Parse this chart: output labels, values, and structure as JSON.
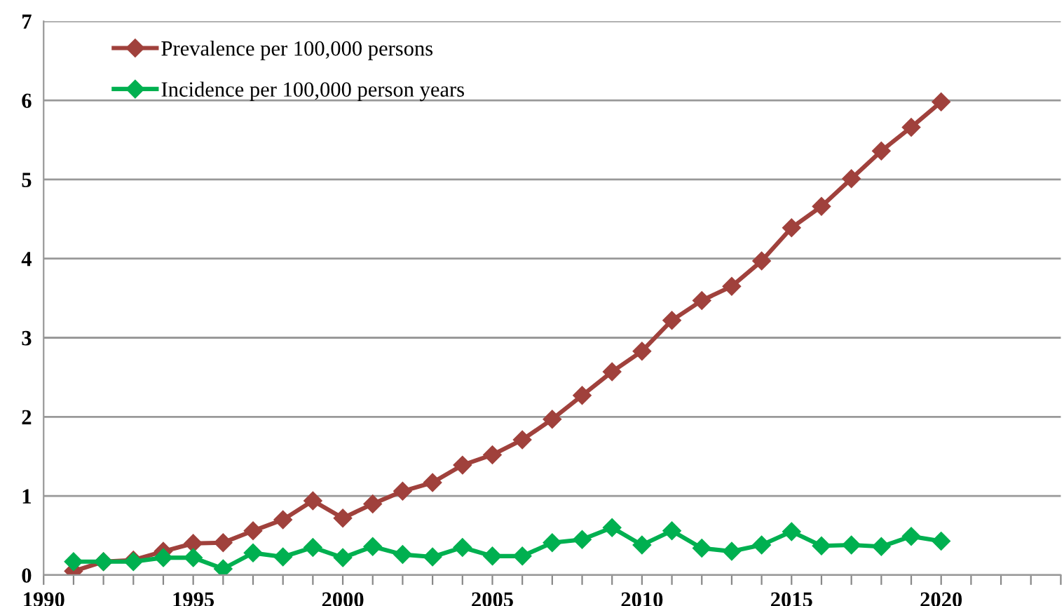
{
  "chart_data": {
    "type": "line",
    "x": [
      1991,
      1992,
      1993,
      1994,
      1995,
      1996,
      1997,
      1998,
      1999,
      2000,
      2001,
      2002,
      2003,
      2004,
      2005,
      2006,
      2007,
      2008,
      2009,
      2010,
      2011,
      2012,
      2013,
      2014,
      2015,
      2016,
      2017,
      2018,
      2019,
      2020
    ],
    "series": [
      {
        "name": "Prevalence per 100,000 persons",
        "color": "#a0413c",
        "values": [
          0.05,
          0.17,
          0.19,
          0.3,
          0.4,
          0.41,
          0.56,
          0.7,
          0.94,
          0.72,
          0.9,
          1.06,
          1.17,
          1.39,
          1.52,
          1.71,
          1.97,
          2.27,
          2.57,
          2.83,
          3.22,
          3.47,
          3.65,
          3.97,
          4.39,
          4.66,
          5.01,
          5.36,
          5.66,
          5.98
        ]
      },
      {
        "name": "Incidence per 100,000 person years",
        "color": "#00b050",
        "values": [
          0.17,
          0.17,
          0.17,
          0.22,
          0.22,
          0.08,
          0.28,
          0.23,
          0.35,
          0.22,
          0.36,
          0.26,
          0.23,
          0.35,
          0.24,
          0.24,
          0.41,
          0.45,
          0.6,
          0.38,
          0.56,
          0.34,
          0.3,
          0.38,
          0.55,
          0.37,
          0.38,
          0.36,
          0.49,
          0.43
        ]
      }
    ],
    "xlim": [
      1990,
      2024
    ],
    "xticks": [
      1990,
      {
        "value": 1991,
        "label": null
      },
      {
        "value": 1992,
        "label": null
      },
      {
        "value": 1993,
        "label": null
      },
      {
        "value": 1994,
        "label": null
      },
      1995,
      {
        "value": 1996,
        "label": null
      },
      {
        "value": 1997,
        "label": null
      },
      {
        "value": 1998,
        "label": null
      },
      {
        "value": 1999,
        "label": null
      },
      2000,
      {
        "value": 2001,
        "label": null
      },
      {
        "value": 2002,
        "label": null
      },
      {
        "value": 2003,
        "label": null
      },
      {
        "value": 2004,
        "label": null
      },
      2005,
      {
        "value": 2006,
        "label": null
      },
      {
        "value": 2007,
        "label": null
      },
      {
        "value": 2008,
        "label": null
      },
      {
        "value": 2009,
        "label": null
      },
      2010,
      {
        "value": 2011,
        "label": null
      },
      {
        "value": 2012,
        "label": null
      },
      {
        "value": 2013,
        "label": null
      },
      {
        "value": 2014,
        "label": null
      },
      2015,
      {
        "value": 2016,
        "label": null
      },
      {
        "value": 2017,
        "label": null
      },
      {
        "value": 2018,
        "label": null
      },
      {
        "value": 2019,
        "label": null
      },
      2020,
      {
        "value": 2021,
        "label": null
      },
      {
        "value": 2022,
        "label": null
      },
      {
        "value": 2023,
        "label": null
      },
      {
        "value": 2024,
        "label": null
      }
    ],
    "ylim": [
      0,
      7
    ],
    "yticks": [
      0,
      1,
      2,
      3,
      4,
      5,
      6,
      7
    ],
    "grid": "y",
    "legend": "top left",
    "marker": "diamond",
    "line_style": "solid"
  }
}
